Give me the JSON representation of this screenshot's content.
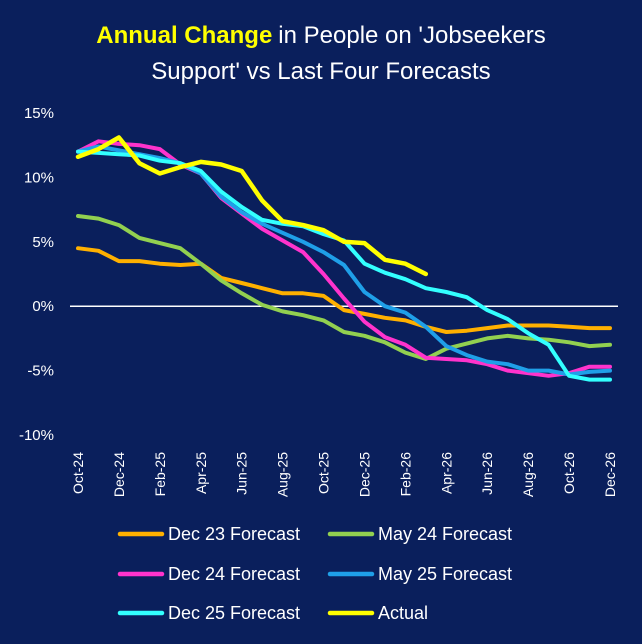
{
  "chart_data": {
    "type": "line",
    "title_highlight": "Annual Change",
    "title_rest": "in People on 'Jobseekers",
    "title_line2": "Support' vs Last Four Forecasts",
    "ylim": [
      -10,
      15
    ],
    "yticks": [
      15,
      10,
      5,
      0,
      -5,
      -10
    ],
    "ytick_labels": [
      "15%",
      "10%",
      "5%",
      "0%",
      "-5%",
      "-10%"
    ],
    "x_count": 27,
    "xtick_labels": [
      "Oct-24",
      "Dec-24",
      "Feb-25",
      "Apr-25",
      "Jun-25",
      "Aug-25",
      "Oct-25",
      "Dec-25",
      "Feb-26",
      "Apr-26",
      "Jun-26",
      "Aug-26",
      "Oct-26",
      "Dec-26"
    ],
    "xlabel": "",
    "ylabel": "",
    "grid": false,
    "legend_position": "bottom",
    "series": [
      {
        "name": "Dec 23 Forecast",
        "color": "#ffb000",
        "values": [
          4.5,
          4.3,
          3.5,
          3.5,
          3.3,
          3.2,
          3.3,
          2.2,
          1.8,
          1.4,
          1.0,
          1.0,
          0.8,
          -0.3,
          -0.6,
          -0.9,
          -1.1,
          -1.6,
          -2.0,
          -1.9,
          -1.7,
          -1.5,
          -1.5,
          -1.5,
          -1.6,
          -1.7,
          -1.7
        ]
      },
      {
        "name": "May 24 Forecast",
        "color": "#92d050",
        "values": [
          7.0,
          6.8,
          6.3,
          5.3,
          4.9,
          4.5,
          3.3,
          2.0,
          1.0,
          0.1,
          -0.4,
          -0.7,
          -1.1,
          -2.0,
          -2.3,
          -2.8,
          -3.6,
          -4.1,
          -3.3,
          -2.9,
          -2.5,
          -2.3,
          -2.5,
          -2.6,
          -2.8,
          -3.1,
          -3.0
        ]
      },
      {
        "name": "Dec 24 Forecast",
        "color": "#ff33cc",
        "values": [
          12.0,
          12.8,
          12.6,
          12.5,
          12.2,
          11.0,
          10.3,
          8.4,
          7.2,
          6.0,
          5.1,
          4.2,
          2.5,
          0.6,
          -1.2,
          -2.4,
          -3.0,
          -4.0,
          -4.1,
          -4.2,
          -4.5,
          -5.0,
          -5.2,
          -5.4,
          -5.2,
          -4.7,
          -4.7
        ]
      },
      {
        "name": "May 25 Forecast",
        "color": "#1f9fe8",
        "values": [
          12.0,
          12.4,
          12.1,
          11.8,
          11.5,
          11.1,
          10.3,
          8.5,
          7.3,
          6.4,
          5.7,
          5.0,
          4.2,
          3.2,
          1.1,
          0.0,
          -0.5,
          -1.6,
          -3.1,
          -3.8,
          -4.3,
          -4.5,
          -5.0,
          -5.0,
          -5.3,
          -5.1,
          -5.0
        ]
      },
      {
        "name": "Dec 25 Forecast",
        "color": "#33ffff",
        "values": [
          12.0,
          11.9,
          11.8,
          11.7,
          11.3,
          11.1,
          10.5,
          8.9,
          7.7,
          6.7,
          6.4,
          6.2,
          5.6,
          5.1,
          3.3,
          2.6,
          2.1,
          1.4,
          1.1,
          0.7,
          -0.3,
          -1.0,
          -2.1,
          -3.0,
          -5.4,
          -5.7,
          -5.7
        ]
      },
      {
        "name": "Actual",
        "color": "#ffff00",
        "values": [
          11.6,
          12.2,
          13.1,
          11.1,
          10.3,
          10.8,
          11.2,
          11.0,
          10.5,
          8.2,
          6.6,
          6.3,
          5.9,
          5.0,
          4.9,
          3.6,
          3.3,
          2.5,
          null,
          null,
          null,
          null,
          null,
          null,
          null,
          null,
          null
        ]
      }
    ]
  }
}
